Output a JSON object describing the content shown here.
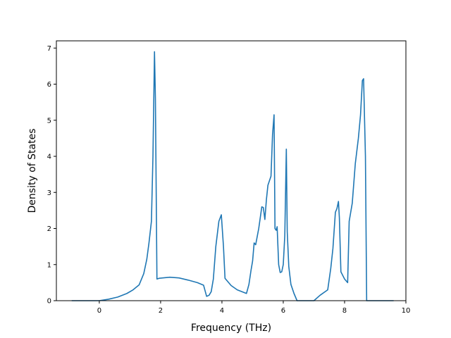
{
  "chart_data": {
    "type": "line",
    "title": "",
    "xlabel": "Frequency (THz)",
    "ylabel": "Density of States",
    "xlim": [
      -1.4,
      10.0
    ],
    "ylim": [
      0,
      7.2
    ],
    "xticks": [
      0,
      2,
      4,
      6,
      8,
      10
    ],
    "yticks": [
      0,
      1,
      2,
      3,
      4,
      5,
      6,
      7
    ],
    "grid": false,
    "legend": "none",
    "line_color": "#1f77b4",
    "series": [
      {
        "x": [
          -0.9,
          -0.5,
          0.0,
          0.3,
          0.6,
          0.9,
          1.1,
          1.3,
          1.45,
          1.55,
          1.62,
          1.7,
          1.75,
          1.8,
          1.83,
          1.88,
          1.95,
          2.3,
          2.6,
          2.9,
          3.2,
          3.4,
          3.5,
          3.58,
          3.65,
          3.72,
          3.8,
          3.9,
          3.98,
          4.05,
          4.1,
          4.3,
          4.5,
          4.8,
          4.88,
          4.95,
          5.0,
          5.05,
          5.1,
          5.2,
          5.3,
          5.35,
          5.4,
          5.45,
          5.5,
          5.6,
          5.65,
          5.7,
          5.73,
          5.77,
          5.8,
          5.85,
          5.9,
          5.95,
          6.0,
          6.05,
          6.1,
          6.13,
          6.18,
          6.25,
          6.35,
          6.45,
          6.6,
          6.8,
          7.0,
          7.2,
          7.45,
          7.55,
          7.62,
          7.7,
          7.75,
          7.8,
          7.83,
          7.88,
          8.0,
          8.1,
          8.15,
          8.25,
          8.35,
          8.45,
          8.52,
          8.58,
          8.62,
          8.68,
          8.72,
          9.0,
          9.6
        ],
        "y": [
          0.0,
          0.0,
          0.0,
          0.04,
          0.1,
          0.2,
          0.3,
          0.44,
          0.75,
          1.15,
          1.6,
          2.2,
          4.0,
          6.9,
          5.6,
          0.6,
          0.62,
          0.65,
          0.63,
          0.57,
          0.5,
          0.43,
          0.12,
          0.15,
          0.25,
          0.6,
          1.5,
          2.2,
          2.38,
          1.5,
          0.62,
          0.42,
          0.3,
          0.2,
          0.45,
          0.85,
          1.1,
          1.6,
          1.55,
          2.0,
          2.6,
          2.58,
          2.25,
          2.8,
          3.2,
          3.45,
          4.6,
          5.15,
          2.0,
          1.95,
          2.05,
          1.0,
          0.78,
          0.8,
          1.0,
          1.8,
          4.2,
          1.9,
          0.95,
          0.45,
          0.2,
          0.0,
          0.0,
          0.0,
          0.0,
          0.15,
          0.3,
          0.9,
          1.45,
          2.45,
          2.55,
          2.75,
          2.3,
          0.8,
          0.6,
          0.5,
          2.2,
          2.7,
          3.8,
          4.5,
          5.15,
          6.1,
          6.15,
          4.0,
          0.0,
          0.0,
          0.0
        ]
      }
    ]
  }
}
